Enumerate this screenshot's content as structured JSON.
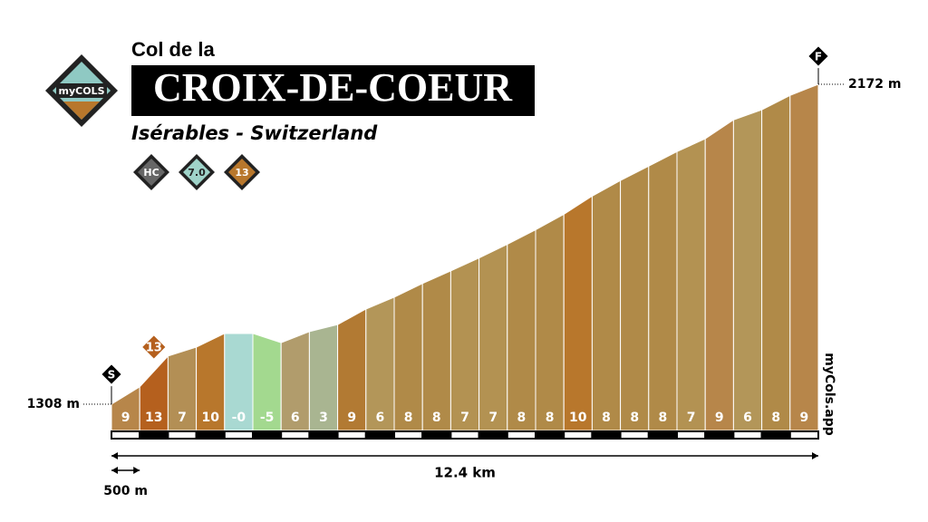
{
  "chart_data": {
    "type": "profile",
    "pretitle": "Col de la",
    "title": "CROIX-DE-COEUR",
    "subtitle": "Isérables - Switzerland",
    "logo": "myCOLS",
    "badges": [
      "HC",
      "7.0",
      "13"
    ],
    "start_marker": "S",
    "finish_marker": "F",
    "start_elevation_label": "1308 m",
    "finish_elevation_label": "2172 m",
    "distance_label": "12.4 km",
    "scale_label": "500 m",
    "credit": "myCols.app",
    "gradients": [
      9,
      13,
      7,
      10,
      0,
      -5,
      6,
      3,
      9,
      6,
      8,
      8,
      7,
      7,
      8,
      8,
      10,
      8,
      8,
      8,
      7,
      9,
      6,
      8,
      9
    ],
    "value_labels": [
      "9",
      "13",
      "7",
      "10",
      "-0",
      "-5",
      "6",
      "3",
      "9",
      "6",
      "8",
      "8",
      "7",
      "7",
      "8",
      "8",
      "10",
      "8",
      "8",
      "8",
      "7",
      "9",
      "6",
      "8",
      "9"
    ],
    "colors": [
      "#b7864a",
      "#b5601e",
      "#b38f55",
      "#b8772c",
      "#a9d9d2",
      "#a3d98f",
      "#b19c6c",
      "#a9b591",
      "#b27a33",
      "#b39659",
      "#b08a48",
      "#b08a48",
      "#b39252",
      "#b39252",
      "#b08a48",
      "#b08a48",
      "#b8772c",
      "#b08a48",
      "#b08a48",
      "#b08a48",
      "#b39252",
      "#b7864a",
      "#b39659",
      "#b08a48",
      "#b7864a"
    ],
    "elevations": [
      1308,
      1355,
      1438,
      1462,
      1499,
      1499,
      1474,
      1504,
      1523,
      1565,
      1597,
      1634,
      1668,
      1703,
      1740,
      1779,
      1821,
      1870,
      1912,
      1951,
      1990,
      2025,
      2076,
      2103,
      2142,
      2172
    ],
    "ylim": [
      1237,
      2172
    ],
    "max_gradient_index": 1
  }
}
